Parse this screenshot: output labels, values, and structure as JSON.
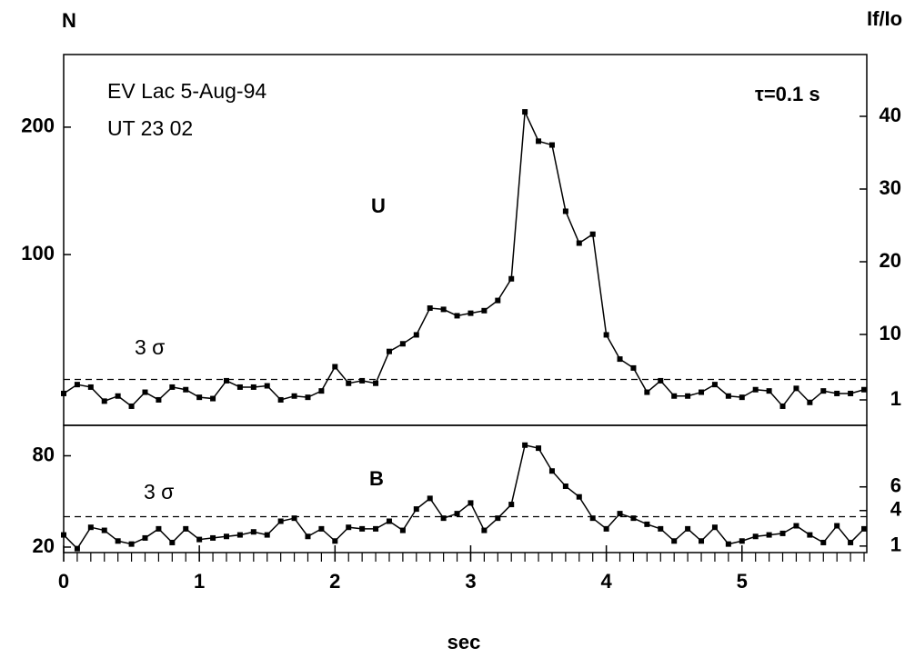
{
  "chart_data": [
    {
      "type": "line",
      "y_label": "N",
      "y2_label": "If/Io",
      "annotations": [
        "EV Lac  5-Aug-94",
        "UT 23 02",
        "τ=0.1 s"
      ],
      "x": [
        0,
        0.1,
        0.2,
        0.3,
        0.4,
        0.5,
        0.6,
        0.7,
        0.8,
        0.9,
        1,
        1.1,
        1.2,
        1.3,
        1.4,
        1.5,
        1.6,
        1.7,
        1.8,
        1.9,
        2,
        2.1,
        2.2,
        2.3,
        2.4,
        2.5,
        2.6,
        2.7,
        2.8,
        2.9,
        3,
        3.1,
        3.2,
        3.3,
        3.4,
        3.5,
        3.6,
        3.7,
        3.8,
        3.9,
        4,
        4.1,
        4.2,
        4.3,
        4.4,
        4.5,
        4.6,
        4.7,
        4.8,
        4.9,
        5,
        5.1,
        5.2,
        5.3,
        5.4,
        5.5,
        5.6,
        5.7,
        5.8,
        5.9
      ],
      "series": [
        {
          "name": "U",
          "color": "#000000",
          "values": [
            -9,
            -2,
            -4,
            -15,
            -11,
            -19,
            -8,
            -14,
            -4,
            -6,
            -12,
            -13,
            1,
            -4,
            -4,
            -3,
            -14,
            -11,
            -12,
            -7,
            12,
            -1,
            1,
            -1,
            24,
            30,
            37,
            58,
            57,
            52,
            54,
            56,
            64,
            81,
            212,
            189,
            186,
            134,
            109,
            116,
            37,
            18,
            11,
            -8,
            1,
            -11,
            -11,
            -8,
            -2,
            -11,
            -12,
            -6,
            -7,
            -19,
            -5,
            -16,
            -7,
            -9,
            -9,
            -6
          ]
        }
      ],
      "threshold": {
        "label": "3 σ",
        "value": 2
      },
      "xlim": [
        0,
        5.92
      ],
      "ylim": [
        -34,
        257
      ],
      "yticks": [
        100,
        200
      ],
      "y2lim": [
        -2.5,
        48.5
      ],
      "y2ticks": [
        1,
        10,
        20,
        30,
        40
      ]
    },
    {
      "type": "line",
      "x_label": "sec",
      "x": [
        0,
        0.1,
        0.2,
        0.3,
        0.4,
        0.5,
        0.6,
        0.7,
        0.8,
        0.9,
        1,
        1.1,
        1.2,
        1.3,
        1.4,
        1.5,
        1.6,
        1.7,
        1.8,
        1.9,
        2,
        2.1,
        2.2,
        2.3,
        2.4,
        2.5,
        2.6,
        2.7,
        2.8,
        2.9,
        3,
        3.1,
        3.2,
        3.3,
        3.4,
        3.5,
        3.6,
        3.7,
        3.8,
        3.9,
        4,
        4.1,
        4.2,
        4.3,
        4.4,
        4.5,
        4.6,
        4.7,
        4.8,
        4.9,
        5,
        5.1,
        5.2,
        5.3,
        5.4,
        5.5,
        5.6,
        5.7,
        5.8,
        5.9
      ],
      "series": [
        {
          "name": "B",
          "color": "#000000",
          "values": [
            28,
            19,
            33,
            31,
            24,
            22,
            26,
            32,
            23,
            32,
            25,
            26,
            27,
            28,
            30,
            28,
            37,
            39,
            27,
            32,
            24,
            33,
            32,
            32,
            37,
            31,
            45,
            52,
            39,
            42,
            49,
            31,
            39,
            48,
            87,
            85,
            70,
            60,
            53,
            39,
            32,
            42,
            39,
            35,
            32,
            24,
            32,
            24,
            33,
            22,
            24,
            27,
            28,
            29,
            34,
            28,
            23,
            34,
            23,
            32
          ]
        }
      ],
      "threshold": {
        "label": "3 σ",
        "value": 40
      },
      "xlim": [
        0,
        5.92
      ],
      "xticks": [
        0,
        1,
        2,
        3,
        4,
        5
      ],
      "xminor": 0.1,
      "ylim": [
        16.4,
        100
      ],
      "yticks": [
        20,
        80
      ],
      "y2lim": [
        0.45,
        11.2
      ],
      "y2ticks": [
        1,
        4,
        6
      ]
    }
  ]
}
